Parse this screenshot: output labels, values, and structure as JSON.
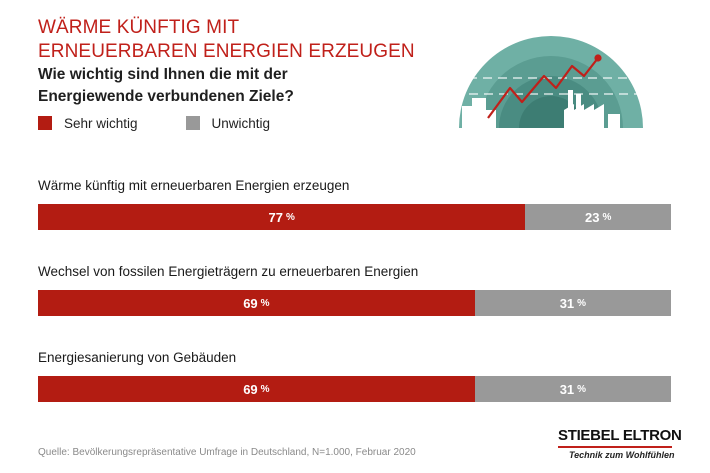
{
  "header": {
    "title_line1": "WÄRME KÜNFTIG MIT",
    "title_line2": "ERNEUERBAREN ENERGIEN ERZEUGEN",
    "question_line1": "Wie wichtig sind Ihnen die mit der",
    "question_line2": "Energiewende verbundenen Ziele?"
  },
  "legend": [
    {
      "label": "Sehr wichtig",
      "color": "#b31c12"
    },
    {
      "label": "Unwichtig",
      "color": "#999999"
    }
  ],
  "chart_data": {
    "type": "bar",
    "orientation": "horizontal",
    "stacked": true,
    "normalized": true,
    "unit": "%",
    "categories": [
      "Wärme künftig mit erneuerbaren Energien erzeugen",
      "Wechsel von fossilen Energieträgern zu erneuerbaren Energien",
      "Energiesanierung von Gebäuden"
    ],
    "series": [
      {
        "name": "Sehr wichtig",
        "values": [
          77,
          69,
          69
        ],
        "color": "#b31c12"
      },
      {
        "name": "Unwichtig",
        "values": [
          23,
          31,
          31
        ],
        "color": "#999999"
      }
    ],
    "xlim": [
      0,
      100
    ],
    "grid": false,
    "legend_position": "top-left"
  },
  "footer": {
    "source": "Quelle: Bevölkerungsrepräsentative Umfrage in Deutschland, N=1.000, Februar 2020"
  },
  "logo": {
    "brand": "STIEBEL ELTRON",
    "tagline": "Technik zum Wohlfühlen",
    "accent": "#c0201a"
  },
  "illustration": {
    "icon": "energy-transition-icon",
    "colors": {
      "outer": "#6fb0a5",
      "middle": "#5b9d92",
      "inner": "#4a8c82",
      "core": "#3d7d73",
      "buildings": "#ffffff",
      "trend": "#c0201a"
    }
  }
}
